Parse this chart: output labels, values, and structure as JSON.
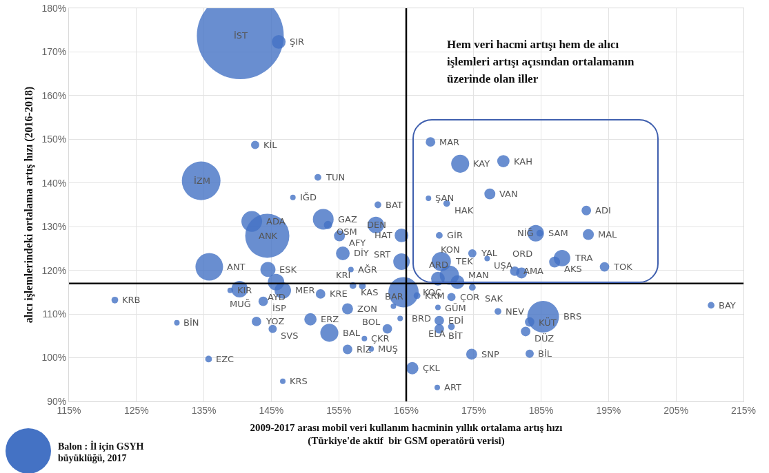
{
  "chart_data": {
    "type": "bubble",
    "xlabel": "2009-2017 arası mobil veri kullanım hacminin yıllık ortalama artış hızı\n(Türkiye'de aktif  bir GSM operatörü verisi)",
    "ylabel": "alıcı işlemlerindeki ortalama artış hızı (2016-2018)",
    "x": [
      140.4,
      146.1,
      142.6,
      134.6,
      151.9,
      148.2,
      160.8,
      142.1,
      144.4,
      152.7,
      153.4,
      155.1,
      160.5,
      164.3,
      155.6,
      156.8,
      164.3,
      135.8,
      144.5,
      145.7,
      146.7,
      140.3,
      138.9,
      143.8,
      152.3,
      157.1,
      158.5,
      121.8,
      131.0,
      135.7,
      146.7,
      142.8,
      145.2,
      150.8,
      153.6,
      156.3,
      158.8,
      156.3,
      159.8,
      162.2,
      164.1,
      169.9,
      169.9,
      171.7,
      169.7,
      163.1,
      171.7,
      164.6,
      166.6,
      174.8,
      172.6,
      169.7,
      170.2,
      171.4,
      174.8,
      177.0,
      168.3,
      171.0,
      177.4,
      168.6,
      173.0,
      179.4,
      191.7,
      184.2,
      184.8,
      192.0,
      169.9,
      188.1,
      187.0,
      181.1,
      182.1,
      194.4,
      210.2,
      178.6,
      185.3,
      183.3,
      182.7,
      174.7,
      183.3,
      165.9,
      169.6
    ],
    "series": [
      {
        "color": "#4472c4",
        "values": [
          173.7,
          172.3,
          148.7,
          140.5,
          141.3,
          136.7,
          135.0,
          131.2,
          127.9,
          131.7,
          130.4,
          127.9,
          130.4,
          128.0,
          123.9,
          120.2,
          122.0,
          120.8,
          120.2,
          117.3,
          115.4,
          115.7,
          115.4,
          112.9,
          114.6,
          116.5,
          116.4,
          113.2,
          108.0,
          99.7,
          94.6,
          108.3,
          106.6,
          108.8,
          105.7,
          111.2,
          104.4,
          101.9,
          102.0,
          106.6,
          109.0,
          108.5,
          106.6,
          107.1,
          111.5,
          111.8,
          113.9,
          115.0,
          114.2,
          116.1,
          117.3,
          118.1,
          122.0,
          118.9,
          123.9,
          122.7,
          136.5,
          135.3,
          137.5,
          149.4,
          144.4,
          145.0,
          133.7,
          128.5,
          128.5,
          128.2,
          128.0,
          122.8,
          121.9,
          119.8,
          119.4,
          120.8,
          112.0,
          110.6,
          109.4,
          108.2,
          106.0,
          100.8,
          100.9,
          97.6,
          93.2
        ],
        "sizes": [
          1,
          0.025,
          0.009,
          0.198,
          0.006,
          0.004,
          0.006,
          0.057,
          0.258,
          0.057,
          0.009,
          0.016,
          0.036,
          0.025,
          0.025,
          0.004,
          0.036,
          0.101,
          0.03,
          0.036,
          0.036,
          0.036,
          0.004,
          0.012,
          0.012,
          0.006,
          0.006,
          0.006,
          0.004,
          0.006,
          0.004,
          0.012,
          0.009,
          0.02,
          0.043,
          0.016,
          0.004,
          0.012,
          0.004,
          0.012,
          0.004,
          0.012,
          0.012,
          0.006,
          0.004,
          0.004,
          0.009,
          0.122,
          0.006,
          0.006,
          0.025,
          0.025,
          0.049,
          0.049,
          0.009,
          0.004,
          0.004,
          0.006,
          0.016,
          0.012,
          0.043,
          0.02,
          0.012,
          0.036,
          0.006,
          0.016,
          0.006,
          0.036,
          0.016,
          0.012,
          0.016,
          0.012,
          0.006,
          0.006,
          0.133,
          0.012,
          0.012,
          0.016,
          0.009,
          0.02,
          0.004
        ]
      }
    ],
    "xlim": [
      115,
      215
    ],
    "xticks": [
      {
        "value": 115,
        "label": "115%"
      },
      {
        "value": 125,
        "label": "125%"
      },
      {
        "value": 135,
        "label": "135%"
      },
      {
        "value": 145,
        "label": "145%"
      },
      {
        "value": 155,
        "label": "155%"
      },
      {
        "value": 165,
        "label": "165%"
      },
      {
        "value": 175,
        "label": "175%"
      },
      {
        "value": 185,
        "label": "185%"
      },
      {
        "value": 195,
        "label": "195%"
      },
      {
        "value": 205,
        "label": "205%"
      },
      {
        "value": 215,
        "label": "215%"
      }
    ],
    "ylim": [
      90,
      180
    ],
    "yticks": [
      {
        "value": 90,
        "label": "90%"
      },
      {
        "value": 100,
        "label": "100%"
      },
      {
        "value": 110,
        "label": "110%"
      },
      {
        "value": 120,
        "label": "120%"
      },
      {
        "value": 130,
        "label": "130%"
      },
      {
        "value": 140,
        "label": "140%"
      },
      {
        "value": 150,
        "label": "150%"
      },
      {
        "value": 160,
        "label": "160%"
      },
      {
        "value": 170,
        "label": "170%"
      },
      {
        "value": 180,
        "label": "180%"
      }
    ],
    "ref_lines": [
      {
        "axis": "x",
        "value": 165,
        "color": "#000000"
      },
      {
        "axis": "y",
        "value": 117,
        "color": "#000000"
      }
    ],
    "grid": true,
    "annotations": [
      "Hem veri hacmi artışı hem de alıcı işlemleri artışı açısından ortalamanın üzerinde olan iller",
      "Balon : İl için GSYH büyüklüğü, 2017",
      {
        "text": "İST",
        "x": 140.4,
        "y": 173.7
      },
      {
        "text": "ŞIR",
        "x": 146.1,
        "y": 172.3
      },
      {
        "text": "KİL",
        "x": 142.6,
        "y": 148.7
      },
      {
        "text": "İZM",
        "x": 134.6,
        "y": 140.5
      },
      {
        "text": "TUN",
        "x": 151.9,
        "y": 141.3
      },
      {
        "text": "IĞD",
        "x": 148.2,
        "y": 136.7
      },
      {
        "text": "BAT",
        "x": 160.8,
        "y": 135.0
      },
      {
        "text": "ADA",
        "x": 142.1,
        "y": 131.2
      },
      {
        "text": "ANK",
        "x": 144.4,
        "y": 127.9
      },
      {
        "text": "GAZ",
        "x": 152.7,
        "y": 131.7
      },
      {
        "text": "OSM",
        "x": 153.4,
        "y": 130.4
      },
      {
        "text": "AFY",
        "x": 155.1,
        "y": 127.9
      },
      {
        "text": "DEN",
        "x": 160.5,
        "y": 130.4
      },
      {
        "text": "HAT",
        "x": 164.3,
        "y": 128.0
      },
      {
        "text": "DİY",
        "x": 155.6,
        "y": 123.9
      },
      {
        "text": "AĞR",
        "x": 156.8,
        "y": 120.2
      },
      {
        "text": "SRT",
        "x": 164.3,
        "y": 122.0
      },
      {
        "text": "ANT",
        "x": 135.8,
        "y": 120.8
      },
      {
        "text": "ESK",
        "x": 144.5,
        "y": 120.2
      },
      {
        "text": "AYD",
        "x": 145.7,
        "y": 117.3
      },
      {
        "text": "MER",
        "x": 146.7,
        "y": 115.4
      },
      {
        "text": "MUĞ",
        "x": 140.3,
        "y": 115.7
      },
      {
        "text": "KIR",
        "x": 138.9,
        "y": 115.4
      },
      {
        "text": "İSP",
        "x": 143.8,
        "y": 112.9
      },
      {
        "text": "KRE",
        "x": 152.3,
        "y": 114.6
      },
      {
        "text": "KAS",
        "x": 157.1,
        "y": 116.5
      },
      {
        "text": "KRİ",
        "x": 158.5,
        "y": 116.4
      },
      {
        "text": "KRB",
        "x": 121.8,
        "y": 113.2
      },
      {
        "text": "BİN",
        "x": 131.0,
        "y": 108.0
      },
      {
        "text": "EZC",
        "x": 135.7,
        "y": 99.7
      },
      {
        "text": "KRS",
        "x": 146.7,
        "y": 94.6
      },
      {
        "text": "YOZ",
        "x": 142.8,
        "y": 108.3
      },
      {
        "text": "SVS",
        "x": 145.2,
        "y": 106.6
      },
      {
        "text": "ERZ",
        "x": 150.8,
        "y": 108.8
      },
      {
        "text": "BAL",
        "x": 153.6,
        "y": 105.7
      },
      {
        "text": "ZON",
        "x": 156.3,
        "y": 111.2
      },
      {
        "text": "ÇKR",
        "x": 158.8,
        "y": 104.4
      },
      {
        "text": "RİZ",
        "x": 156.3,
        "y": 101.9
      },
      {
        "text": "MUŞ",
        "x": 159.8,
        "y": 102.0
      },
      {
        "text": "BOL",
        "x": 162.2,
        "y": 106.6
      },
      {
        "text": "BRD",
        "x": 164.1,
        "y": 109.0
      },
      {
        "text": "EDİ",
        "x": 169.9,
        "y": 108.5
      },
      {
        "text": "BİT",
        "x": 169.9,
        "y": 106.6
      },
      {
        "text": "ELA",
        "x": 171.7,
        "y": 107.1
      },
      {
        "text": "GÜM",
        "x": 169.7,
        "y": 111.5
      },
      {
        "text": "BAR",
        "x": 163.1,
        "y": 111.8
      },
      {
        "text": "ÇOR",
        "x": 171.7,
        "y": 113.9
      },
      {
        "text": "KOÇ",
        "x": 164.6,
        "y": 115.0
      },
      {
        "text": "KRM",
        "x": 166.6,
        "y": 114.2
      },
      {
        "text": "SAK",
        "x": 174.8,
        "y": 116.1
      },
      {
        "text": "MAN",
        "x": 172.6,
        "y": 117.3
      },
      {
        "text": "ARD",
        "x": 169.7,
        "y": 118.1
      },
      {
        "text": "TEK",
        "x": 170.2,
        "y": 122.0
      },
      {
        "text": "KON",
        "x": 171.4,
        "y": 118.9
      },
      {
        "text": "YAL",
        "x": 174.8,
        "y": 123.9
      },
      {
        "text": "UŞA",
        "x": 177.0,
        "y": 122.7
      },
      {
        "text": "ŞAN",
        "x": 168.3,
        "y": 136.5
      },
      {
        "text": "HAK",
        "x": 171.0,
        "y": 135.3
      },
      {
        "text": "VAN",
        "x": 177.4,
        "y": 137.5
      },
      {
        "text": "MAR",
        "x": 168.6,
        "y": 149.4
      },
      {
        "text": "KAY",
        "x": 173.0,
        "y": 144.4
      },
      {
        "text": "KAH",
        "x": 179.4,
        "y": 145.0
      },
      {
        "text": "ADI",
        "x": 191.7,
        "y": 133.7
      },
      {
        "text": "SAM",
        "x": 184.2,
        "y": 128.5
      },
      {
        "text": "NİĞ",
        "x": 184.8,
        "y": 128.5
      },
      {
        "text": "MAL",
        "x": 192.0,
        "y": 128.2
      },
      {
        "text": "GİR",
        "x": 169.9,
        "y": 128.0
      },
      {
        "text": "TRA",
        "x": 188.1,
        "y": 122.8
      },
      {
        "text": "AKS",
        "x": 187.0,
        "y": 121.9
      },
      {
        "text": "AMA",
        "x": 181.1,
        "y": 119.8
      },
      {
        "text": "ORD",
        "x": 182.1,
        "y": 119.4
      },
      {
        "text": "TOK",
        "x": 194.4,
        "y": 120.8
      },
      {
        "text": "BAY",
        "x": 210.2,
        "y": 112.0
      },
      {
        "text": "NEV",
        "x": 178.6,
        "y": 110.6
      },
      {
        "text": "BRS",
        "x": 185.3,
        "y": 109.4
      },
      {
        "text": "KÜT",
        "x": 183.3,
        "y": 108.2
      },
      {
        "text": "DÜZ",
        "x": 182.7,
        "y": 106.0
      },
      {
        "text": "SNP",
        "x": 174.7,
        "y": 100.8
      },
      {
        "text": "BİL",
        "x": 183.3,
        "y": 100.9
      },
      {
        "text": "ÇKL",
        "x": 165.9,
        "y": 97.6
      },
      {
        "text": "ART",
        "x": 169.6,
        "y": 93.2
      }
    ]
  }
}
